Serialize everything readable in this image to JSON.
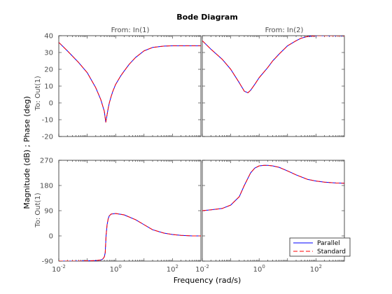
{
  "chart_data": {
    "type": "line",
    "title": "Bode Diagram",
    "xlabel": "Frequency  (rad/s)",
    "ylabel": "Magnitude (dB) ; Phase (deg)",
    "row_label": "To: Out(1)",
    "x_scale": "log",
    "xlim": [
      0.01,
      1000
    ],
    "x_ticks": [
      {
        "value": 0.01,
        "base": "10",
        "exp": "-2"
      },
      {
        "value": 1,
        "base": "10",
        "exp": "0"
      },
      {
        "value": 100,
        "base": "10",
        "exp": "2"
      }
    ],
    "grid": false,
    "legend": {
      "placement": "bottom-right",
      "entries": [
        {
          "name": "Parallel",
          "color": "#0000ff",
          "style": "solid"
        },
        {
          "name": "Standard",
          "color": "#ff0000",
          "style": "dashed"
        }
      ]
    },
    "columns": [
      {
        "label": "From: In(1)"
      },
      {
        "label": "From: In(2)"
      }
    ],
    "rows": [
      {
        "kind": "magnitude",
        "ylim": [
          -20,
          40
        ],
        "ticks": [
          "-20",
          "-10",
          "0",
          "10",
          "20",
          "30",
          "40"
        ]
      },
      {
        "kind": "phase",
        "ylim": [
          -90,
          270
        ],
        "ticks": [
          "-90",
          "0",
          "90",
          "180",
          "270"
        ]
      }
    ],
    "panels": [
      {
        "id": "mag-in1",
        "row": 0,
        "col": 0,
        "x": [
          0.01,
          0.02,
          0.05,
          0.1,
          0.2,
          0.3,
          0.4,
          0.45,
          0.5,
          0.55,
          0.6,
          0.7,
          0.8,
          1,
          1.5,
          2,
          3,
          5,
          10,
          20,
          50,
          100,
          200,
          500,
          1000
        ],
        "series": [
          {
            "name": "Parallel",
            "values": [
              36,
              31,
              24,
              18,
              9,
              2,
              -5,
              -11.5,
              -7,
              -3,
              0,
              4,
              7,
              11,
              16,
              19,
              23,
              27,
              31,
              33,
              33.8,
              34,
              34,
              34,
              34
            ]
          },
          {
            "name": "Standard",
            "values": [
              36,
              31,
              24,
              18,
              9,
              2,
              -5,
              -11.5,
              -7,
              -3,
              0,
              4,
              7,
              11,
              16,
              19,
              23,
              27,
              31,
              33,
              33.8,
              34,
              34,
              34,
              34
            ]
          }
        ]
      },
      {
        "id": "mag-in2",
        "row": 0,
        "col": 1,
        "x": [
          0.01,
          0.02,
          0.05,
          0.1,
          0.2,
          0.3,
          0.4,
          0.5,
          0.7,
          1,
          2,
          3,
          5,
          10,
          20,
          30,
          50,
          100,
          200,
          500,
          1000
        ],
        "series": [
          {
            "name": "Parallel",
            "values": [
              37,
              32,
              26,
              20,
              12,
              7,
              6,
              7.5,
              11,
              15,
              21,
              25,
              29,
              34,
              37,
              38.5,
              39.5,
              40,
              40,
              40,
              40
            ]
          },
          {
            "name": "Standard",
            "values": [
              37,
              32,
              26,
              20,
              12,
              7,
              6,
              7.5,
              11,
              15,
              21,
              25,
              29,
              34,
              37,
              38.5,
              39.5,
              40,
              40,
              40,
              40
            ]
          }
        ]
      },
      {
        "id": "phase-in1",
        "row": 1,
        "col": 0,
        "x": [
          0.01,
          0.05,
          0.1,
          0.2,
          0.3,
          0.35,
          0.4,
          0.43,
          0.46,
          0.5,
          0.55,
          0.6,
          0.7,
          1,
          2,
          5,
          10,
          20,
          50,
          100,
          200,
          500,
          1000
        ],
        "series": [
          {
            "name": "Parallel",
            "values": [
              -90,
              -90,
              -89,
              -88,
              -86,
              -83,
              -75,
              -60,
              0,
              40,
              62,
              72,
              78,
              80,
              75,
              58,
              40,
              22,
              10,
              5,
              2,
              0,
              0
            ]
          },
          {
            "name": "Standard",
            "values": [
              -90,
              -90,
              -89,
              -88,
              -86,
              -83,
              -75,
              -60,
              0,
              40,
              62,
              72,
              78,
              80,
              75,
              58,
              40,
              22,
              10,
              5,
              2,
              0,
              0
            ]
          }
        ]
      },
      {
        "id": "phase-in2",
        "row": 1,
        "col": 1,
        "x": [
          0.01,
          0.02,
          0.05,
          0.1,
          0.2,
          0.3,
          0.5,
          0.7,
          1,
          1.5,
          2,
          3,
          5,
          10,
          20,
          50,
          100,
          200,
          500,
          1000
        ],
        "series": [
          {
            "name": "Parallel",
            "values": [
              90,
              93,
              98,
              110,
              140,
              180,
              225,
              242,
              250,
              252,
              252,
              250,
              245,
              232,
              218,
              202,
              196,
              192,
              189,
              188
            ]
          },
          {
            "name": "Standard",
            "values": [
              90,
              93,
              98,
              110,
              140,
              180,
              225,
              242,
              250,
              252,
              252,
              250,
              245,
              232,
              218,
              202,
              196,
              192,
              189,
              188
            ]
          }
        ]
      }
    ]
  }
}
